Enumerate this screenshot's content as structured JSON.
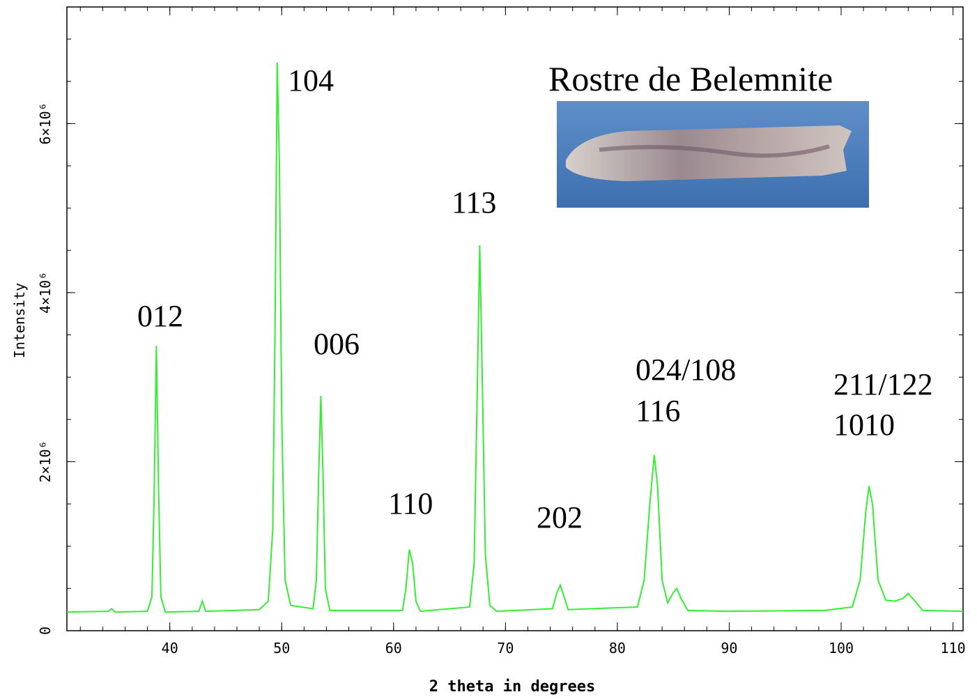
{
  "chart_data": {
    "type": "line",
    "xlabel": "2 theta in degrees",
    "ylabel": "Intensity",
    "annotations": [
      "104",
      "012",
      "006",
      "110",
      "113",
      "202",
      "024/108",
      "116",
      "211/122",
      "1010",
      "Rostre de Belemnite"
    ],
    "color": "#33ee33",
    "xlim": [
      30.8,
      110.9
    ],
    "ylim": [
      0,
      7380000
    ],
    "xticks": [
      40,
      50,
      60,
      70,
      80,
      90,
      100,
      110
    ],
    "yticks": [
      0,
      {
        "value": 2000000,
        "label": "2×10⁶"
      },
      {
        "value": 4000000,
        "label": "4×10⁶"
      },
      {
        "value": 6000000,
        "label": "6×10⁶"
      }
    ],
    "x": [
      30.8,
      34.5,
      34.8,
      35.1,
      38.0,
      38.4,
      38.6,
      38.8,
      39.0,
      39.2,
      39.6,
      42.6,
      42.9,
      43.2,
      48.0,
      48.8,
      49.2,
      49.4,
      49.6,
      49.8,
      50.0,
      50.3,
      50.8,
      52.8,
      53.1,
      53.3,
      53.5,
      53.7,
      53.9,
      54.3,
      60.8,
      61.1,
      61.4,
      61.7,
      62.0,
      62.4,
      66.8,
      67.2,
      67.5,
      67.7,
      67.9,
      68.2,
      68.6,
      69.2,
      74.2,
      74.6,
      74.9,
      75.2,
      75.6,
      81.8,
      82.4,
      82.9,
      83.3,
      83.6,
      84.0,
      84.5,
      85.0,
      85.3,
      85.7,
      86.3,
      89.7,
      98.5,
      101.0,
      101.7,
      102.2,
      102.5,
      102.8,
      103.3,
      104.0,
      104.8,
      105.5,
      106.0,
      106.6,
      107.3,
      110.9
    ],
    "values": [
      220000,
      230000,
      260000,
      220000,
      230000,
      400000,
      1600000,
      3370000,
      1600000,
      400000,
      220000,
      230000,
      350000,
      230000,
      250000,
      350000,
      1200000,
      3500000,
      6720000,
      5500000,
      2500000,
      600000,
      300000,
      260000,
      600000,
      1800000,
      2780000,
      1800000,
      500000,
      240000,
      240000,
      500000,
      960000,
      800000,
      350000,
      230000,
      280000,
      800000,
      3000000,
      4560000,
      3200000,
      900000,
      300000,
      230000,
      260000,
      450000,
      540000,
      420000,
      250000,
      280000,
      600000,
      1500000,
      2080000,
      1700000,
      600000,
      330000,
      450000,
      500000,
      380000,
      240000,
      230000,
      240000,
      280000,
      600000,
      1400000,
      1710000,
      1500000,
      600000,
      360000,
      350000,
      380000,
      440000,
      350000,
      240000,
      230000
    ]
  }
}
